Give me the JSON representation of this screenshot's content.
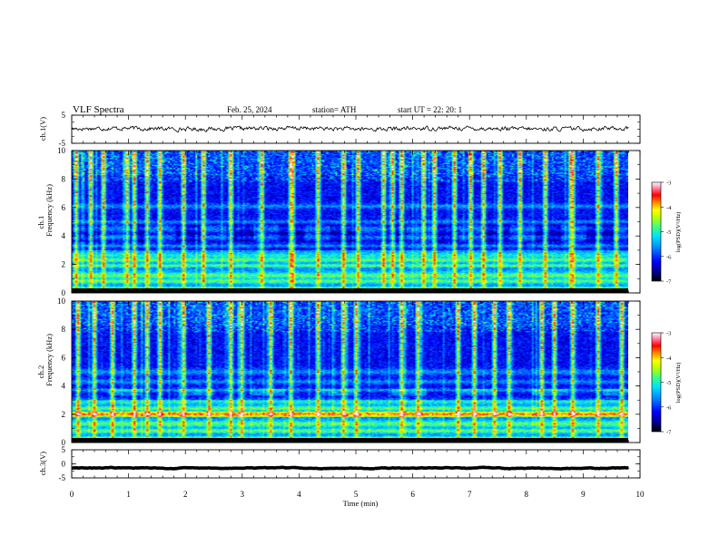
{
  "header": {
    "title": "VLF  Spectra",
    "date": "Feb. 25, 2024",
    "station": "station= ATH",
    "start": "start  UT  =    22: 20: 1"
  },
  "chart_data": [
    {
      "type": "line",
      "panel": "ch1-voltage",
      "ylabel": "ch.1(V)",
      "ylim": [
        -5,
        5
      ],
      "yticks": [
        "5",
        "-5"
      ],
      "series": [
        {
          "x_range_min": [
            0,
            9.8
          ],
          "level_V": 0.2,
          "amplitude_V": 0.6
        }
      ]
    },
    {
      "type": "heatmap",
      "panel": "ch1-spectrogram",
      "ylabel": "ch.1\nFrequency (kHz)",
      "ylim": [
        0,
        10
      ],
      "yticks": [
        "0",
        "2",
        "4",
        "6",
        "8",
        "10"
      ],
      "xlim": [
        0,
        10
      ],
      "data_x_range_min": [
        0,
        9.8
      ],
      "colorbar": {
        "label": "log(PSD)(V²/Hz)",
        "range": [
          -7,
          -3
        ],
        "ticks": [
          "-3",
          "-4",
          "-5",
          "-6",
          "-7"
        ]
      },
      "features": {
        "sferic_times_min": [
          0.05,
          0.32,
          0.55,
          0.95,
          1.1,
          1.32,
          1.55,
          1.95,
          2.32,
          2.8,
          3.35,
          3.85,
          3.9,
          4.35,
          4.8,
          5.05,
          5.5,
          5.65,
          5.82,
          6.2,
          6.4,
          6.75,
          7.05,
          7.25,
          7.55,
          7.9,
          8.35,
          8.8,
          8.85,
          9.3,
          9.6
        ],
        "band_centers_kHz": [
          0.3,
          0.8,
          1.2,
          1.9,
          2.3,
          2.6,
          3.3,
          3.9,
          4.5,
          5.0,
          6.1
        ]
      }
    },
    {
      "type": "heatmap",
      "panel": "ch2-spectrogram",
      "ylabel": "ch.2\nFrequency (kHz)",
      "ylim": [
        0,
        10
      ],
      "yticks": [
        "0",
        "2",
        "4",
        "6",
        "8",
        "10"
      ],
      "xlim": [
        0,
        10
      ],
      "data_x_range_min": [
        0,
        9.8
      ],
      "colorbar": {
        "label": "log(PSD)(V²/Hz)",
        "range": [
          -7,
          -3
        ],
        "ticks": [
          "-3",
          "-4",
          "-5",
          "-6",
          "-7"
        ]
      },
      "features": {
        "sferic_times_min": [
          0.1,
          0.4,
          0.72,
          1.1,
          1.32,
          1.55,
          1.95,
          2.4,
          2.8,
          3.0,
          3.5,
          3.85,
          4.35,
          4.8,
          5.0,
          5.8,
          6.1,
          6.8,
          7.1,
          7.45,
          7.7,
          8.3,
          8.5,
          8.85,
          9.3,
          9.7
        ],
        "band_centers_kHz": [
          0.3,
          0.8,
          1.3,
          2.0,
          2.4,
          2.9,
          3.7,
          4.3,
          5.0
        ]
      }
    },
    {
      "type": "line",
      "panel": "ch3-voltage",
      "ylabel": "ch.3(V)",
      "ylim": [
        -5,
        5
      ],
      "yticks": [
        "5",
        "0",
        "-5"
      ],
      "series": [
        {
          "x_range_min": [
            0,
            9.8
          ],
          "level_V": -1.5,
          "amplitude_V": 0.3
        }
      ]
    }
  ],
  "x_axis": {
    "label": "Time  (min)",
    "ticks": [
      "0",
      "1",
      "2",
      "3",
      "4",
      "5",
      "6",
      "7",
      "8",
      "9",
      "10"
    ],
    "xlim": [
      0,
      10
    ]
  },
  "colors": {
    "colormap": [
      "#000000",
      "#00007a",
      "#0000ff",
      "#0080ff",
      "#00e0ff",
      "#40ff80",
      "#c0ff00",
      "#ffff00",
      "#ff8000",
      "#ff0000",
      "#ff80a0",
      "#ffffff"
    ],
    "frame": "#000000"
  }
}
